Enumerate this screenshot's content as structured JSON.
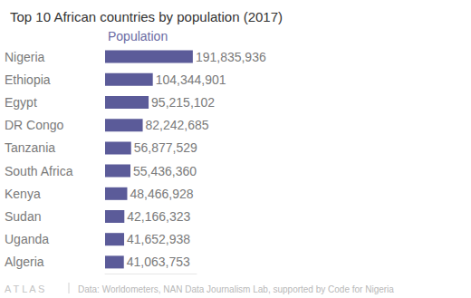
{
  "chart_data": {
    "type": "bar",
    "orientation": "horizontal",
    "title": "Top 10 African countries by population (2017)",
    "xlabel": "Population",
    "brand": "ATLAS",
    "source": "Data: Worldometers, NAN Data Journalism Lab, supported by Code for Nigeria",
    "categories": [
      "Nigeria",
      "Ethiopia",
      "Egypt",
      "DR Congo",
      "Tanzania",
      "South Africa",
      "Kenya",
      "Sudan",
      "Uganda",
      "Algeria"
    ],
    "values": [
      191835936,
      104344901,
      95215102,
      82242685,
      56877529,
      55436360,
      48466928,
      42166323,
      41652938,
      41063753
    ],
    "value_labels": [
      "191,835,936",
      "104,344,901",
      "95,215,102",
      "82,242,685",
      "56,877,529",
      "55,436,360",
      "48,466,928",
      "42,166,323",
      "41,652,938",
      "41,063,753"
    ],
    "color": "#5b5b99",
    "xlim": [
      0,
      200000000
    ],
    "data_labels": true,
    "tick_labels": "y",
    "grid": false
  }
}
